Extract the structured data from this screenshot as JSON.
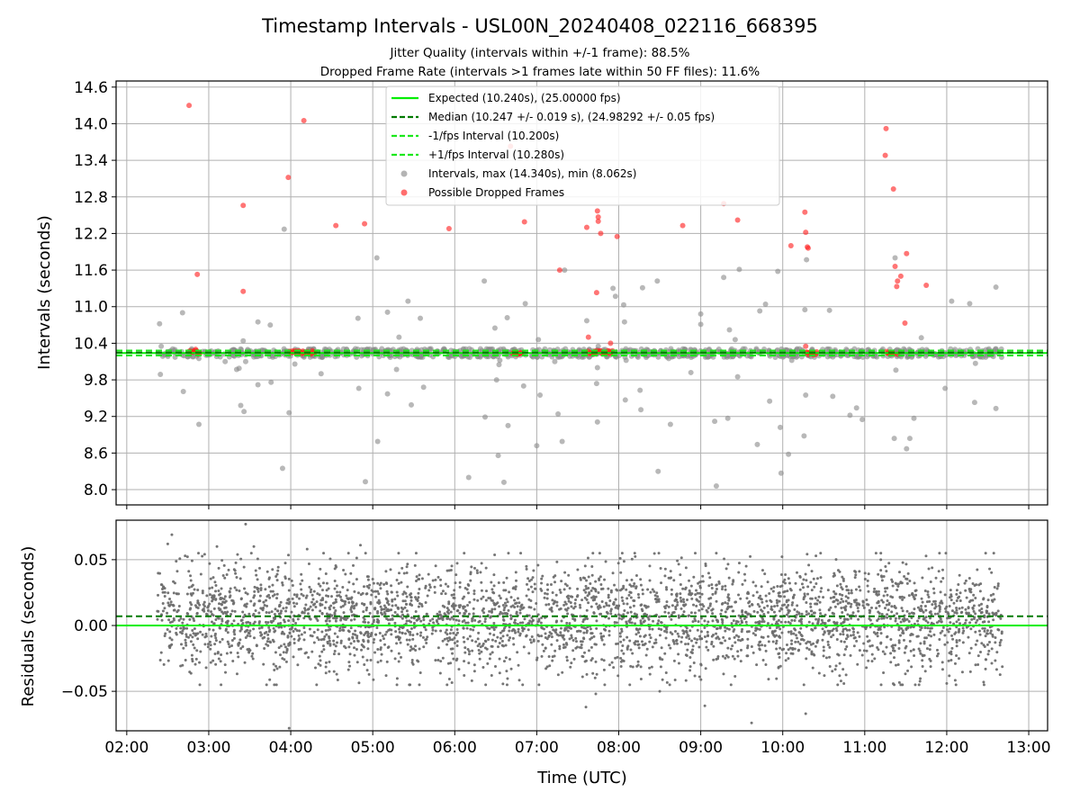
{
  "figure": {
    "title": "Timestamp Intervals - USL00N_20240408_022116_668395",
    "subtitle_1": "Jitter Quality (intervals within +/-1 frame): 88.5%",
    "subtitle_2": "Dropped Frame Rate (intervals >1 frames late within 50 FF files): 11.6%"
  },
  "colors": {
    "expected": "#00ee00",
    "median": "#007a00",
    "fps_interval": "#1be81b",
    "intervals": "#8c8c8c",
    "dropped": "#ff2020",
    "residuals": "#6e6e6e",
    "grid": "#b0b0b0"
  },
  "chart_data": [
    {
      "type": "scatter",
      "panel": "intervals",
      "ylabel": "Intervals (seconds)",
      "xlabel": "",
      "xlim": [
        1.87,
        13.23
      ],
      "ylim": [
        7.75,
        14.7
      ],
      "x_ticks": [
        2,
        3,
        4,
        5,
        6,
        7,
        8,
        9,
        10,
        11,
        12,
        13
      ],
      "x_tick_labels": [
        "02:00",
        "03:00",
        "04:00",
        "05:00",
        "06:00",
        "07:00",
        "08:00",
        "09:00",
        "10:00",
        "11:00",
        "12:00",
        "13:00"
      ],
      "y_ticks": [
        8.0,
        8.6,
        9.2,
        9.8,
        10.4,
        11.0,
        11.6,
        12.2,
        12.8,
        13.4,
        14.0,
        14.6
      ],
      "y_tick_labels": [
        "8.0",
        "8.6",
        "9.2",
        "9.8",
        "10.4",
        "11.0",
        "11.6",
        "12.2",
        "12.8",
        "13.4",
        "14.0",
        "14.6"
      ],
      "grid": true,
      "legend_position": "upper-center",
      "reference_lines": [
        {
          "name": "Expected (10.240s), (25.00000 fps)",
          "y": 10.24,
          "style": "solid",
          "color_key": "expected"
        },
        {
          "name": "Median (10.247 +/- 0.019 s), (24.98292 +/- 0.05 fps)",
          "y": 10.247,
          "style": "dashed",
          "color_key": "median"
        },
        {
          "name": "-1/fps Interval (10.200s)",
          "y": 10.2,
          "style": "dashed",
          "color_key": "fps_interval"
        },
        {
          "name": "+1/fps Interval (10.280s)",
          "y": 10.28,
          "style": "dashed",
          "color_key": "fps_interval"
        }
      ],
      "series": [
        {
          "name": "Intervals, max (14.340s), min (8.062s)",
          "color_key": "intervals",
          "band": {
            "center": 10.24,
            "halfwidth": 0.07,
            "count": 950,
            "x_range": [
              2.38,
              12.67
            ]
          },
          "x": [
            2.4,
            2.41,
            2.42,
            2.68,
            2.69,
            2.88,
            2.88,
            3.2,
            3.34,
            3.37,
            3.39,
            3.42,
            3.43,
            3.45,
            3.6,
            3.6,
            3.63,
            3.75,
            3.76,
            3.9,
            3.92,
            3.98,
            4.05,
            4.37,
            4.38,
            4.82,
            4.83,
            4.91,
            5.05,
            5.06,
            5.18,
            5.18,
            5.29,
            5.32,
            5.43,
            5.47,
            5.58,
            5.62,
            6.17,
            6.36,
            6.37,
            6.49,
            6.51,
            6.54,
            6.53,
            6.55,
            6.6,
            6.64,
            6.65,
            6.84,
            6.86,
            7.0,
            7.02,
            7.04,
            7.22,
            7.26,
            7.31,
            7.34,
            7.61,
            7.73,
            7.74,
            7.75,
            7.74,
            7.93,
            7.96,
            8.06,
            8.08,
            8.09,
            8.07,
            8.26,
            8.29,
            8.27,
            8.48,
            8.47,
            8.61,
            8.63,
            8.79,
            8.88,
            9.0,
            9.0,
            9.17,
            9.19,
            9.28,
            9.33,
            9.35,
            9.42,
            9.45,
            9.47,
            9.69,
            9.72,
            9.79,
            9.84,
            9.94,
            9.97,
            9.98,
            10.07,
            10.11,
            10.27,
            10.28,
            10.29,
            10.26,
            10.57,
            10.61,
            10.82,
            10.9,
            10.97,
            11.36,
            11.37,
            11.38,
            11.51,
            11.55,
            11.6,
            11.69,
            11.98,
            12.06,
            12.28,
            12.34,
            12.35,
            12.6,
            12.6
          ],
          "y": [
            10.72,
            9.89,
            10.35,
            10.9,
            9.61,
            10.15,
            9.07,
            10.1,
            9.97,
            9.99,
            9.38,
            10.44,
            9.28,
            10.1,
            10.75,
            9.72,
            10.2,
            10.7,
            9.76,
            8.35,
            12.27,
            9.26,
            10.06,
            9.9,
            10.17,
            10.81,
            9.66,
            8.13,
            11.8,
            8.79,
            10.91,
            9.57,
            9.97,
            10.5,
            11.09,
            9.39,
            10.81,
            9.68,
            8.2,
            11.42,
            9.19,
            10.65,
            9.8,
            10.05,
            8.56,
            10.12,
            8.12,
            10.82,
            9.05,
            9.7,
            11.05,
            8.72,
            10.46,
            9.55,
            10.1,
            9.24,
            8.79,
            11.6,
            10.77,
            9.74,
            10.0,
            10.35,
            9.11,
            11.3,
            11.17,
            11.03,
            9.47,
            10.12,
            10.75,
            9.63,
            11.31,
            9.31,
            8.3,
            11.42,
            10.15,
            9.07,
            10.22,
            9.92,
            10.88,
            10.71,
            9.12,
            8.06,
            11.48,
            9.17,
            10.62,
            10.46,
            9.85,
            11.61,
            8.74,
            10.93,
            11.04,
            9.45,
            11.58,
            9.02,
            8.27,
            8.58,
            10.12,
            10.95,
            9.55,
            11.77,
            8.88,
            10.94,
            9.53,
            9.22,
            9.34,
            9.15,
            8.84,
            11.8,
            9.96,
            8.67,
            8.84,
            9.17,
            10.49,
            9.66,
            11.09,
            11.05,
            9.43,
            10.07,
            11.32,
            9.33
          ]
        },
        {
          "name": "Possible Dropped Frames",
          "color_key": "dropped",
          "clusters": [
            {
              "x_range": [
                2.76,
                2.9
              ],
              "y": 10.25,
              "count": 11
            },
            {
              "x_range": [
                3.98,
                4.3
              ],
              "y": 10.25,
              "count": 22
            },
            {
              "x_range": [
                6.7,
                6.82
              ],
              "y": 10.24,
              "count": 9
            },
            {
              "x_range": [
                7.62,
                7.93
              ],
              "y": 10.25,
              "count": 22
            },
            {
              "x_range": [
                10.28,
                10.42
              ],
              "y": 10.24,
              "count": 11
            },
            {
              "x_range": [
                11.26,
                11.36
              ],
              "y": 10.24,
              "count": 8
            }
          ],
          "x": [
            2.76,
            2.86,
            2.84,
            4.16,
            3.97,
            3.42,
            3.42,
            4.55,
            4.9,
            5.93,
            6.68,
            6.85,
            7.28,
            7.61,
            7.75,
            7.74,
            7.78,
            7.75,
            7.73,
            7.63,
            7.9,
            7.98,
            8.78,
            9.28,
            9.45,
            10.1,
            10.27,
            10.28,
            10.31,
            10.3,
            10.28,
            11.26,
            11.25,
            11.35,
            11.37,
            11.39,
            11.4,
            11.44,
            11.51,
            11.49,
            11.4,
            11.75
          ],
          "y": [
            14.3,
            11.53,
            10.3,
            14.05,
            13.12,
            12.66,
            11.25,
            12.33,
            12.36,
            12.28,
            13.63,
            12.39,
            11.6,
            12.3,
            12.4,
            12.57,
            12.2,
            12.47,
            11.23,
            10.5,
            10.4,
            12.15,
            12.33,
            12.69,
            12.42,
            12.0,
            12.55,
            12.22,
            11.96,
            11.98,
            10.35,
            13.92,
            13.48,
            12.93,
            11.66,
            11.33,
            11.42,
            11.5,
            11.87,
            10.73,
            10.22,
            11.35
          ]
        }
      ]
    },
    {
      "type": "scatter",
      "panel": "residuals",
      "ylabel": "Residuals (seconds)",
      "xlabel": "Time (UTC)",
      "xlim": [
        1.87,
        13.23
      ],
      "ylim": [
        -0.08,
        0.08
      ],
      "x_ticks": [
        2,
        3,
        4,
        5,
        6,
        7,
        8,
        9,
        10,
        11,
        12,
        13
      ],
      "x_tick_labels": [
        "02:00",
        "03:00",
        "04:00",
        "05:00",
        "06:00",
        "07:00",
        "08:00",
        "09:00",
        "10:00",
        "11:00",
        "12:00",
        "13:00"
      ],
      "y_ticks": [
        -0.05,
        0.0,
        0.05
      ],
      "y_tick_labels": [
        "−0.05",
        "0.00",
        "0.05"
      ],
      "grid": true,
      "reference_lines": [
        {
          "y": 0.0,
          "style": "solid",
          "color_key": "expected"
        },
        {
          "y": 0.007,
          "style": "dashed",
          "color_key": "median"
        }
      ],
      "series": [
        {
          "name": "",
          "color_key": "residuals",
          "band": {
            "center": 0.005,
            "spread": 0.02,
            "count": 3600,
            "x_range": [
              2.37,
              12.68
            ]
          },
          "x": [
            2.55,
            3.45,
            3.98,
            4.85,
            7.6,
            7.72,
            8.5,
            9.05,
            9.62,
            10.28,
            2.5,
            3.1,
            3.55,
            4.2,
            12.0,
            12.45
          ],
          "y": [
            0.069,
            0.077,
            -0.078,
            0.061,
            -0.062,
            -0.052,
            -0.05,
            -0.061,
            -0.074,
            -0.067,
            0.062,
            0.06,
            0.06,
            0.058,
            -0.044,
            -0.043
          ]
        }
      ]
    }
  ]
}
